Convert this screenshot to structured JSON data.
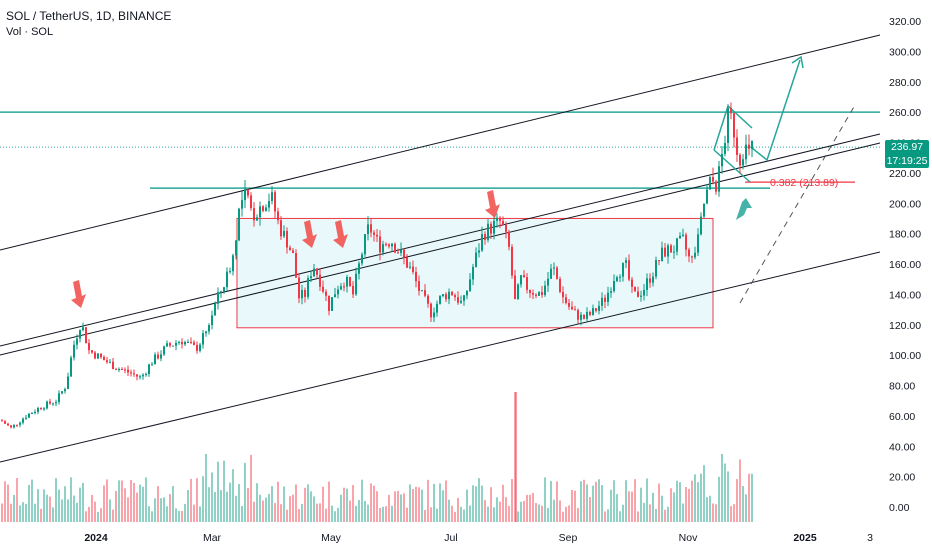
{
  "header": {
    "symbol_line": "SOL / TetherUS, 1D, BINANCE",
    "volume_line": "Vol · SOL"
  },
  "price_badge": {
    "price": "236.97",
    "countdown": "17:19:25",
    "color": "#089981"
  },
  "fib_label": "0.382 (213.89)",
  "colors": {
    "up": "#089981",
    "down": "#f23645",
    "teal_line": "#26a69a",
    "channel": "#131722",
    "range_fill": "#e0f7fa",
    "range_border": "#f23645",
    "arrow_red": "#ef5350",
    "arrow_green": "#26a69a"
  },
  "chart_data": {
    "type": "candlestick",
    "y_axis": {
      "min": -10,
      "max": 330,
      "ticks": [
        "320.00",
        "300.00",
        "280.00",
        "260.00",
        "240.00",
        "220.00",
        "200.00",
        "180.00",
        "160.00",
        "140.00",
        "120.00",
        "100.00",
        "80.00",
        "60.00",
        "40.00",
        "20.00",
        "0.00"
      ]
    },
    "x_axis": {
      "ticks": [
        {
          "label": "2024",
          "major": true
        },
        {
          "label": "Mar",
          "major": false
        },
        {
          "label": "May",
          "major": false
        },
        {
          "label": "Jul",
          "major": false
        },
        {
          "label": "Sep",
          "major": false
        },
        {
          "label": "Nov",
          "major": false
        },
        {
          "label": "2025",
          "major": true
        },
        {
          "label": "3",
          "major": false
        }
      ]
    },
    "price_path_keypoints": [
      [
        0,
        57
      ],
      [
        10,
        52
      ],
      [
        25,
        60
      ],
      [
        40,
        66
      ],
      [
        55,
        70
      ],
      [
        65,
        80
      ],
      [
        72,
        105
      ],
      [
        80,
        122
      ],
      [
        88,
        103
      ],
      [
        100,
        98
      ],
      [
        115,
        92
      ],
      [
        130,
        88
      ],
      [
        140,
        85
      ],
      [
        150,
        95
      ],
      [
        165,
        105
      ],
      [
        180,
        110
      ],
      [
        195,
        104
      ],
      [
        205,
        115
      ],
      [
        215,
        135
      ],
      [
        225,
        150
      ],
      [
        232,
        165
      ],
      [
        238,
        195
      ],
      [
        244,
        205
      ],
      [
        252,
        192
      ],
      [
        262,
        200
      ],
      [
        270,
        205
      ],
      [
        278,
        185
      ],
      [
        286,
        175
      ],
      [
        292,
        165
      ],
      [
        298,
        138
      ],
      [
        304,
        140
      ],
      [
        312,
        160
      ],
      [
        320,
        148
      ],
      [
        328,
        132
      ],
      [
        336,
        145
      ],
      [
        344,
        150
      ],
      [
        352,
        140
      ],
      [
        360,
        165
      ],
      [
        368,
        185
      ],
      [
        378,
        172
      ],
      [
        390,
        176
      ],
      [
        400,
        166
      ],
      [
        410,
        156
      ],
      [
        420,
        140
      ],
      [
        430,
        128
      ],
      [
        440,
        138
      ],
      [
        450,
        142
      ],
      [
        462,
        133
      ],
      [
        472,
        158
      ],
      [
        482,
        180
      ],
      [
        492,
        185
      ],
      [
        500,
        188
      ],
      [
        508,
        170
      ],
      [
        514,
        135
      ],
      [
        520,
        150
      ],
      [
        528,
        143
      ],
      [
        540,
        140
      ],
      [
        552,
        158
      ],
      [
        562,
        138
      ],
      [
        572,
        128
      ],
      [
        582,
        124
      ],
      [
        592,
        128
      ],
      [
        605,
        138
      ],
      [
        615,
        155
      ],
      [
        625,
        158
      ],
      [
        632,
        138
      ],
      [
        642,
        143
      ],
      [
        652,
        155
      ],
      [
        662,
        168
      ],
      [
        672,
        170
      ],
      [
        682,
        175
      ],
      [
        690,
        160
      ],
      [
        697,
        175
      ],
      [
        703,
        200
      ],
      [
        710,
        215
      ],
      [
        716,
        212
      ],
      [
        722,
        235
      ],
      [
        728,
        260
      ],
      [
        733,
        248
      ],
      [
        738,
        228
      ],
      [
        743,
        238
      ],
      [
        748,
        232
      ],
      [
        751,
        237
      ]
    ],
    "volume_scale_max": 100,
    "support_resistance": [
      {
        "price": 260,
        "kind": "horizontal"
      },
      {
        "price": 210,
        "kind": "horizontal"
      },
      {
        "price": 236.97,
        "kind": "last-price"
      }
    ],
    "range_box": {
      "price_top": 190,
      "price_bottom": 118
    },
    "fib_level": {
      "price": 213.89,
      "ratio": 0.382
    }
  }
}
